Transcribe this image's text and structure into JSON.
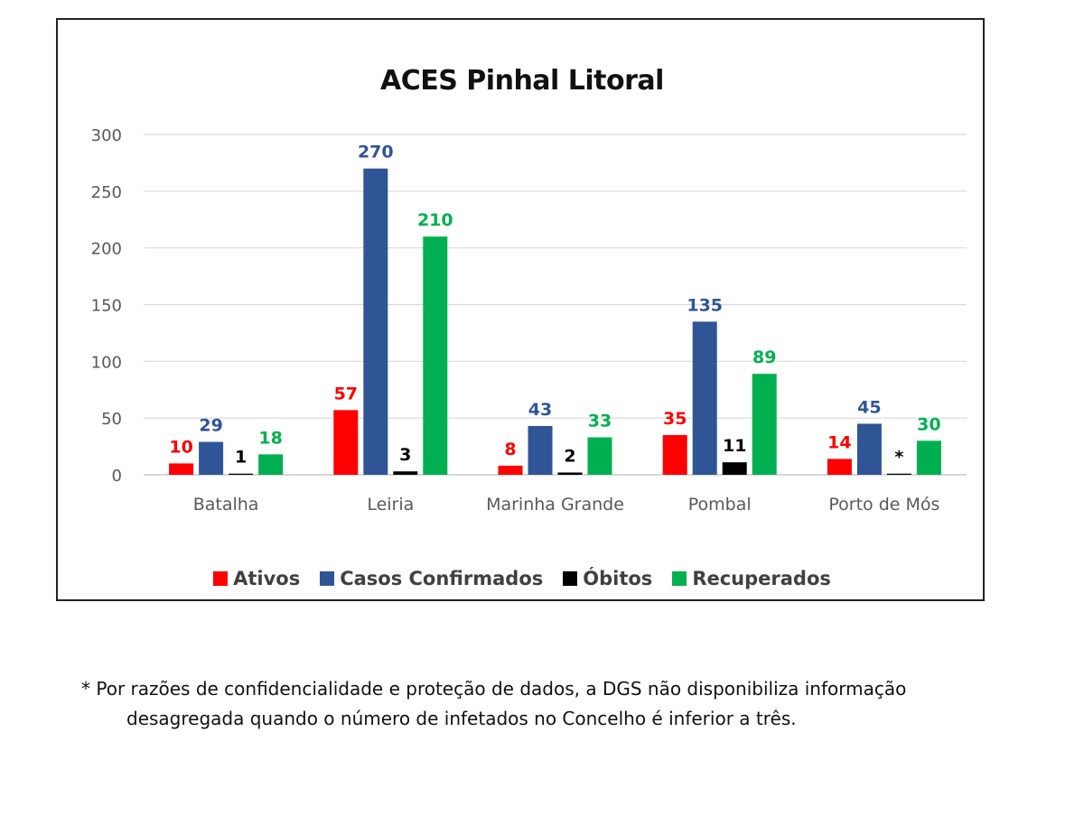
{
  "chart_data": {
    "type": "bar",
    "title": "ACES Pinhal Litoral",
    "categories": [
      "Batalha",
      "Leiria",
      "Marinha Grande",
      "Pombal",
      "Porto de Mós"
    ],
    "series": [
      {
        "name": "Ativos",
        "color": "#ff0000",
        "values": [
          10,
          57,
          8,
          35,
          14
        ],
        "labels": [
          "10",
          "57",
          "8",
          "35",
          "14"
        ]
      },
      {
        "name": "Casos Confirmados",
        "color": "#2f5597",
        "values": [
          29,
          270,
          43,
          135,
          45
        ],
        "labels": [
          "29",
          "270",
          "43",
          "135",
          "45"
        ]
      },
      {
        "name": "Óbitos",
        "color": "#000000",
        "values": [
          1,
          3,
          2,
          11,
          1
        ],
        "labels": [
          "1",
          "3",
          "2",
          "11",
          "*"
        ]
      },
      {
        "name": "Recuperados",
        "color": "#00b050",
        "values": [
          18,
          210,
          33,
          89,
          30
        ],
        "labels": [
          "18",
          "210",
          "33",
          "89",
          "30"
        ]
      }
    ],
    "ylim": [
      0,
      300
    ],
    "yticks": [
      0,
      50,
      100,
      150,
      200,
      250,
      300
    ],
    "grid": true,
    "legend_position": "bottom"
  },
  "footnote": {
    "line1": "* Por razões de confidencialidade e proteção de dados, a DGS não disponibiliza informação",
    "line2": "desagregada quando o número de infetados no Concelho é inferior a três."
  }
}
